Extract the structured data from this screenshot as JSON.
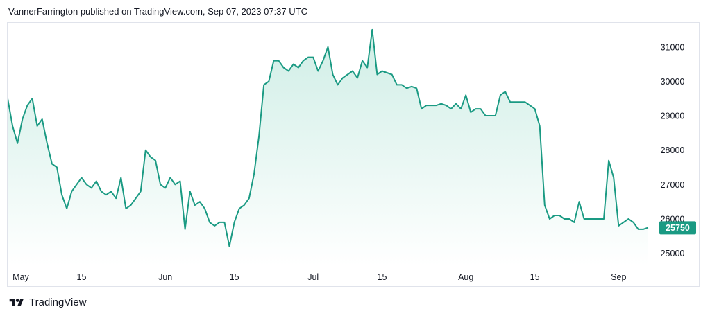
{
  "header": {
    "published_text": "VannerFarrington published on TradingView.com, Sep 07, 2023 07:37 UTC"
  },
  "brand": {
    "name": "TradingView",
    "logo_icon": "tradingview-logo-icon"
  },
  "colors": {
    "line": "#1a9a83",
    "fill_top": "#cfeee6",
    "fill_bottom": "#ffffff",
    "badge": "#1a9a83",
    "border": "#e0e3eb"
  },
  "chart_data": {
    "type": "area",
    "title": "",
    "xlabel": "",
    "ylabel": "",
    "x_ticks": [
      "May",
      "15",
      "Jun",
      "15",
      "Jul",
      "15",
      "Aug",
      "15",
      "Sep"
    ],
    "x_tick_dates": [
      "2023-05-01",
      "2023-05-15",
      "2023-06-01",
      "2023-06-15",
      "2023-07-01",
      "2023-07-15",
      "2023-08-01",
      "2023-08-15",
      "2023-09-01"
    ],
    "y_ticks": [
      25000,
      26000,
      27000,
      28000,
      29000,
      30000,
      31000
    ],
    "y_tick_labels": [
      "25000",
      "26000",
      "27000",
      "28000",
      "29000",
      "30000",
      "31000"
    ],
    "xlim": [
      "2023-04-30",
      "2023-09-08"
    ],
    "ylim": [
      24650,
      31700
    ],
    "last_price": 25750,
    "last_price_label": "25750",
    "series": [
      {
        "x": [
          "2023-04-30",
          "2023-05-01",
          "2023-05-02",
          "2023-05-03",
          "2023-05-04",
          "2023-05-05",
          "2023-05-06",
          "2023-05-07",
          "2023-05-08",
          "2023-05-09",
          "2023-05-10",
          "2023-05-11",
          "2023-05-12",
          "2023-05-13",
          "2023-05-14",
          "2023-05-15",
          "2023-05-16",
          "2023-05-17",
          "2023-05-18",
          "2023-05-19",
          "2023-05-20",
          "2023-05-21",
          "2023-05-22",
          "2023-05-23",
          "2023-05-24",
          "2023-05-25",
          "2023-05-26",
          "2023-05-27",
          "2023-05-28",
          "2023-05-29",
          "2023-05-30",
          "2023-05-31",
          "2023-06-01",
          "2023-06-02",
          "2023-06-03",
          "2023-06-04",
          "2023-06-05",
          "2023-06-06",
          "2023-06-07",
          "2023-06-08",
          "2023-06-09",
          "2023-06-10",
          "2023-06-11",
          "2023-06-12",
          "2023-06-13",
          "2023-06-14",
          "2023-06-15",
          "2023-06-16",
          "2023-06-17",
          "2023-06-18",
          "2023-06-19",
          "2023-06-20",
          "2023-06-21",
          "2023-06-22",
          "2023-06-23",
          "2023-06-24",
          "2023-06-25",
          "2023-06-26",
          "2023-06-27",
          "2023-06-28",
          "2023-06-29",
          "2023-06-30",
          "2023-07-01",
          "2023-07-02",
          "2023-07-03",
          "2023-07-04",
          "2023-07-05",
          "2023-07-06",
          "2023-07-07",
          "2023-07-08",
          "2023-07-09",
          "2023-07-10",
          "2023-07-11",
          "2023-07-12",
          "2023-07-13",
          "2023-07-14",
          "2023-07-15",
          "2023-07-16",
          "2023-07-17",
          "2023-07-18",
          "2023-07-19",
          "2023-07-20",
          "2023-07-21",
          "2023-07-22",
          "2023-07-23",
          "2023-07-24",
          "2023-07-25",
          "2023-07-26",
          "2023-07-27",
          "2023-07-28",
          "2023-07-29",
          "2023-07-30",
          "2023-07-31",
          "2023-08-01",
          "2023-08-02",
          "2023-08-03",
          "2023-08-04",
          "2023-08-05",
          "2023-08-06",
          "2023-08-07",
          "2023-08-08",
          "2023-08-09",
          "2023-08-10",
          "2023-08-11",
          "2023-08-12",
          "2023-08-13",
          "2023-08-14",
          "2023-08-15",
          "2023-08-16",
          "2023-08-17",
          "2023-08-18",
          "2023-08-19",
          "2023-08-20",
          "2023-08-21",
          "2023-08-22",
          "2023-08-23",
          "2023-08-24",
          "2023-08-25",
          "2023-08-26",
          "2023-08-27",
          "2023-08-28",
          "2023-08-29",
          "2023-08-30",
          "2023-08-31",
          "2023-09-01",
          "2023-09-02",
          "2023-09-03",
          "2023-09-04",
          "2023-09-05",
          "2023-09-06",
          "2023-09-07"
        ],
        "values": [
          29500,
          28700,
          28200,
          28900,
          29300,
          29500,
          28700,
          28900,
          28200,
          27600,
          27500,
          26700,
          26300,
          26800,
          27000,
          27200,
          27000,
          26900,
          27100,
          26800,
          26700,
          26800,
          26600,
          27200,
          26300,
          26400,
          26600,
          26800,
          28000,
          27800,
          27700,
          27000,
          26900,
          27200,
          27000,
          27100,
          25700,
          26800,
          26400,
          26500,
          26300,
          25900,
          25800,
          25900,
          25900,
          25200,
          25900,
          26300,
          26400,
          26600,
          27300,
          28400,
          29900,
          30000,
          30600,
          30600,
          30400,
          30300,
          30500,
          30400,
          30600,
          30700,
          30700,
          30300,
          30600,
          31000,
          30200,
          29900,
          30100,
          30200,
          30300,
          30100,
          30600,
          30400,
          31500,
          30200,
          30300,
          30250,
          30200,
          29900,
          29900,
          29800,
          29850,
          29800,
          29200,
          29300,
          29300,
          29300,
          29350,
          29300,
          29200,
          29350,
          29200,
          29600,
          29100,
          29200,
          29200,
          29000,
          29000,
          29000,
          29600,
          29700,
          29400,
          29400,
          29400,
          29400,
          29300,
          29200,
          28700,
          26400,
          26000,
          26100,
          26100,
          26000,
          26000,
          25900,
          26500,
          26000,
          26000,
          26000,
          26000,
          26000,
          27700,
          27200,
          25800,
          25900,
          26000,
          25900,
          25700,
          25700,
          25750
        ]
      }
    ]
  }
}
